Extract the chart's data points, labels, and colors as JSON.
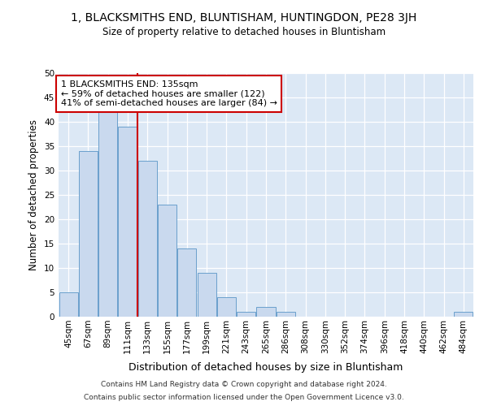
{
  "title": "1, BLACKSMITHS END, BLUNTISHAM, HUNTINGDON, PE28 3JH",
  "subtitle": "Size of property relative to detached houses in Bluntisham",
  "xlabel": "Distribution of detached houses by size in Bluntisham",
  "ylabel": "Number of detached properties",
  "categories": [
    "45sqm",
    "67sqm",
    "89sqm",
    "111sqm",
    "133sqm",
    "155sqm",
    "177sqm",
    "199sqm",
    "221sqm",
    "243sqm",
    "265sqm",
    "286sqm",
    "308sqm",
    "330sqm",
    "352sqm",
    "374sqm",
    "396sqm",
    "418sqm",
    "440sqm",
    "462sqm",
    "484sqm"
  ],
  "values": [
    5,
    34,
    42,
    39,
    32,
    23,
    14,
    9,
    4,
    1,
    2,
    1,
    0,
    0,
    0,
    0,
    0,
    0,
    0,
    0,
    1
  ],
  "bar_color": "#c9d9ee",
  "bar_edge_color": "#6aa0cc",
  "vline_x_index": 3,
  "vline_color": "#cc0000",
  "annotation_text": "1 BLACKSMITHS END: 135sqm\n← 59% of detached houses are smaller (122)\n41% of semi-detached houses are larger (84) →",
  "annotation_box_color": "#cc0000",
  "ylim": [
    0,
    50
  ],
  "yticks": [
    0,
    5,
    10,
    15,
    20,
    25,
    30,
    35,
    40,
    45,
    50
  ],
  "background_color": "#dce8f5",
  "grid_color": "#ffffff",
  "fig_background": "#ffffff",
  "footer_line1": "Contains HM Land Registry data © Crown copyright and database right 2024.",
  "footer_line2": "Contains public sector information licensed under the Open Government Licence v3.0."
}
